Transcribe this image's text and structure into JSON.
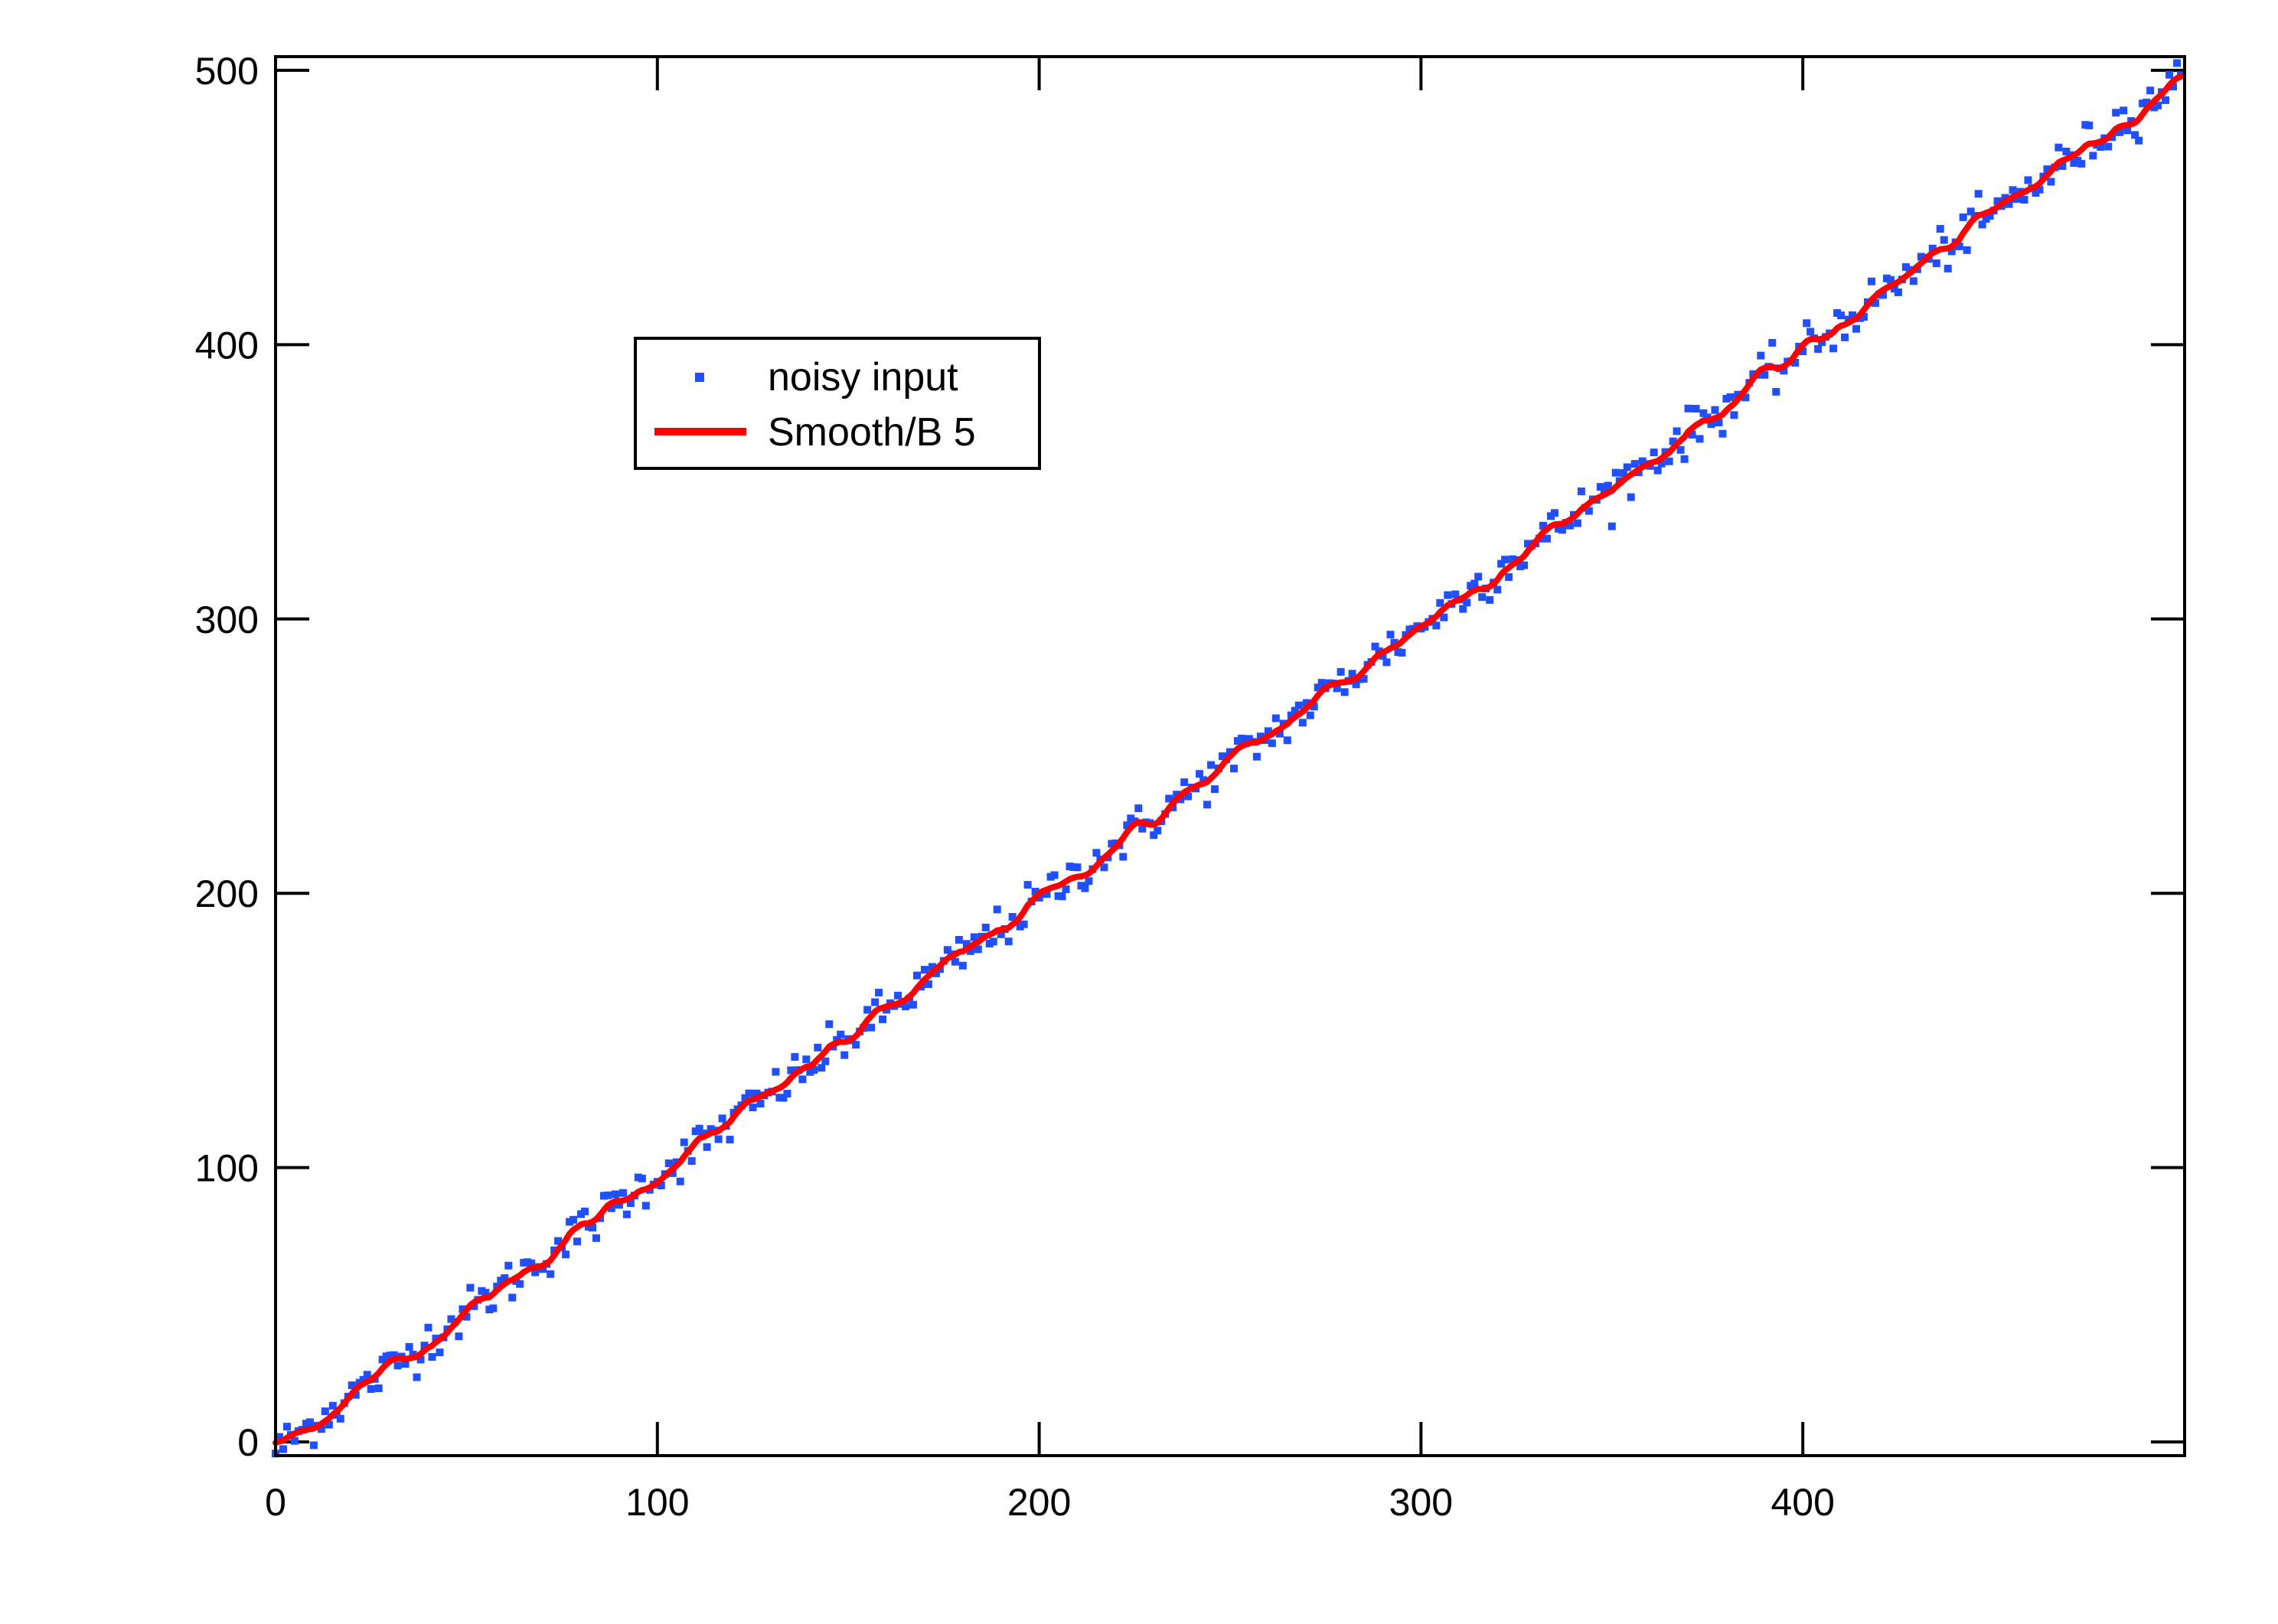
{
  "chart_data": {
    "type": "scatter",
    "title": "",
    "xlabel": "",
    "ylabel": "",
    "xlim": [
      0,
      499
    ],
    "ylim": [
      -5,
      505
    ],
    "x_ticks": [
      0,
      100,
      200,
      300,
      400
    ],
    "y_ticks": [
      0,
      100,
      200,
      300,
      400,
      500
    ],
    "x_tick_labels": [
      "0",
      "100",
      "200",
      "300",
      "400"
    ],
    "y_tick_labels": [
      "0",
      "100",
      "200",
      "300",
      "400",
      "500"
    ],
    "grid": false,
    "legend_position": "upper-left",
    "series": [
      {
        "name": "noisy input",
        "style": "markers",
        "color": "#1f4fff",
        "x": [
          0,
          499
        ],
        "y": [
          -3,
          497
        ],
        "noise_sd": 4
      },
      {
        "name": "Smooth/B 5",
        "style": "line",
        "color": "#ff0000",
        "x": [
          0,
          499
        ],
        "y": [
          -1,
          497
        ]
      }
    ]
  }
}
